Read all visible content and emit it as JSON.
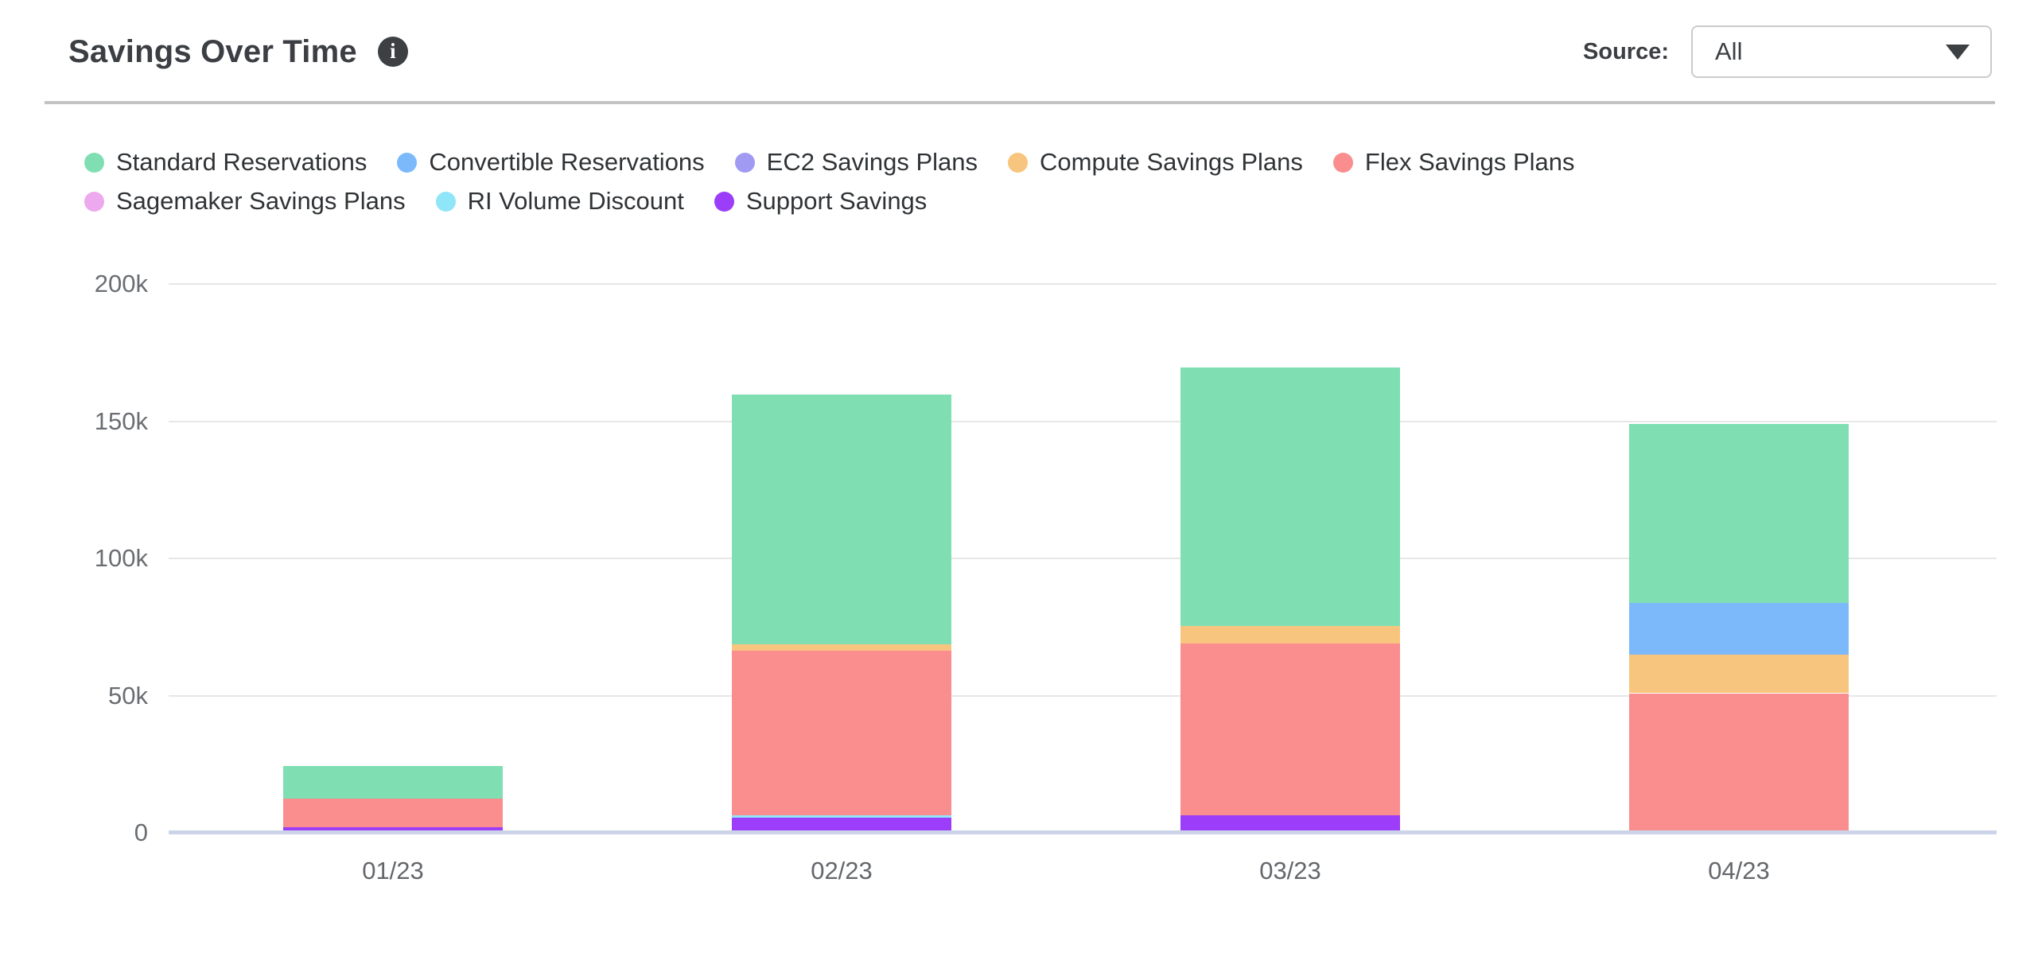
{
  "header": {
    "title": "Savings Over Time",
    "info_icon_glyph": "i",
    "source_label": "Source:",
    "source_value": "All"
  },
  "chart_data": {
    "type": "bar",
    "stacked": true,
    "title": "Savings Over Time",
    "categories": [
      "01/23",
      "02/23",
      "03/23",
      "04/23"
    ],
    "series": [
      {
        "name": "Standard Reservations",
        "color": "#7fdfb2",
        "values": [
          12000,
          91000,
          94000,
          65000
        ]
      },
      {
        "name": "Convertible Reservations",
        "color": "#7cb9fb",
        "values": [
          0,
          0,
          0,
          19000
        ]
      },
      {
        "name": "EC2 Savings Plans",
        "color": "#a09af3",
        "values": [
          0,
          0,
          0,
          0
        ]
      },
      {
        "name": "Compute Savings Plans",
        "color": "#f8c57e",
        "values": [
          0,
          2300,
          6400,
          14000
        ]
      },
      {
        "name": "Flex Savings Plans",
        "color": "#fa8e8f",
        "values": [
          10300,
          60000,
          62700,
          50000
        ]
      },
      {
        "name": "Sagemaker Savings Plans",
        "color": "#eda9ee",
        "values": [
          0,
          0,
          0,
          0
        ]
      },
      {
        "name": "RI Volume Discount",
        "color": "#8fe6f8",
        "values": [
          0,
          1100,
          0,
          0
        ]
      },
      {
        "name": "Support Savings",
        "color": "#9c3dfa",
        "values": [
          1200,
          4500,
          5500,
          0
        ]
      }
    ],
    "stack_order_bottom_to_top": [
      "Support Savings",
      "RI Volume Discount",
      "Sagemaker Savings Plans",
      "Flex Savings Plans",
      "Compute Savings Plans",
      "EC2 Savings Plans",
      "Convertible Reservations",
      "Standard Reservations"
    ],
    "totals": [
      23500,
      158900,
      168600,
      148000
    ],
    "y_axis": {
      "ticks": [
        "0",
        "50k",
        "100k",
        "150k",
        "200k"
      ],
      "tick_values": [
        0,
        50000,
        100000,
        150000,
        200000
      ],
      "max": 200000
    },
    "x_axis_label": "",
    "y_axis_label": "",
    "grid": true,
    "legend_position": "top-left",
    "legend_rows": [
      5,
      3
    ]
  },
  "colors": {
    "baseline": "#ccd4e8",
    "gridline": "#e7e7e7",
    "header_divider": "#c3c3c3",
    "title_text": "#3b3e42",
    "axis_text": "#6a6e72",
    "legend_text": "#303336",
    "info_icon_bg": "#3d4043"
  }
}
